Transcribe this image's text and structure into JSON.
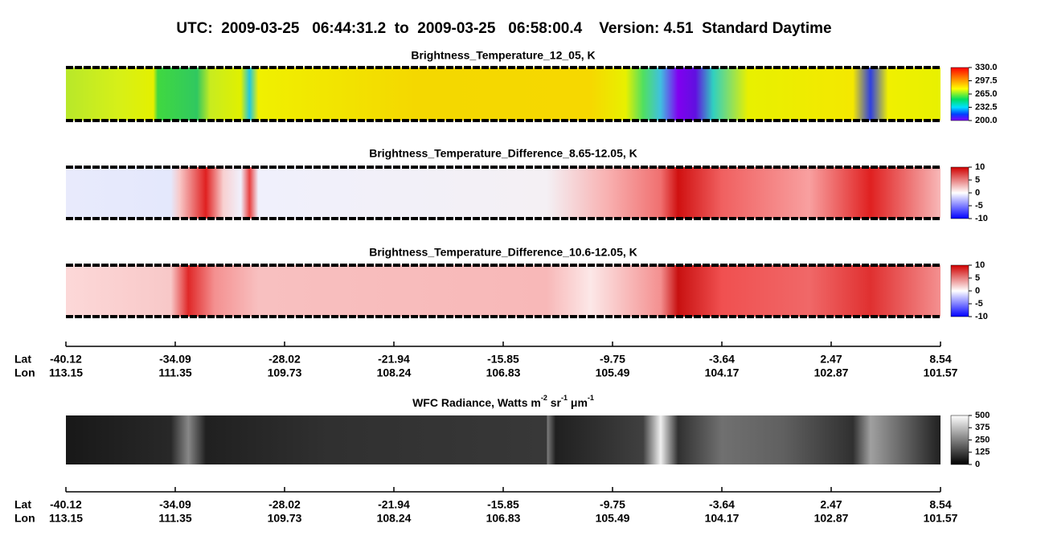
{
  "title": "UTC:  2009-03-25   06:44:31.2  to  2009-03-25   06:58:00.4    Version: 4.51  Standard Daytime",
  "panels": [
    {
      "title": "Brightness_Temperature_12_05, K",
      "colorbar": [
        {
          "value": 330,
          "label": "330.0"
        },
        {
          "value": 297.5,
          "label": "297.5"
        },
        {
          "value": 265,
          "label": "265.0"
        },
        {
          "value": 232.5,
          "label": "232.5"
        },
        {
          "value": 200,
          "label": "200.0"
        }
      ]
    },
    {
      "title": "Brightness_Temperature_Difference_8.65-12.05, K",
      "colorbar": [
        10,
        5,
        0,
        -5,
        -10
      ]
    },
    {
      "title": "Brightness_Temperature_Difference_10.6-12.05, K",
      "colorbar": [
        10,
        5,
        0,
        -5,
        -10
      ]
    }
  ],
  "wfc": {
    "title_parts": [
      {
        "text": "WFC Radiance, Watts m"
      },
      {
        "text": "-2",
        "sup": true
      },
      {
        "text": " sr"
      },
      {
        "text": "-1",
        "sup": true
      },
      {
        "text": " μm"
      },
      {
        "text": "-1",
        "sup": true
      }
    ],
    "colorbar": [
      500,
      375,
      250,
      125,
      0
    ]
  },
  "axis": {
    "lat_label": "Lat",
    "lon_label": "Lon",
    "lat": [
      -40.12,
      -34.09,
      -28.02,
      -21.94,
      -15.85,
      -9.75,
      -3.64,
      2.47,
      8.54
    ],
    "lon": [
      113.15,
      111.35,
      109.73,
      108.24,
      106.83,
      105.49,
      104.17,
      102.87,
      101.57
    ]
  }
}
